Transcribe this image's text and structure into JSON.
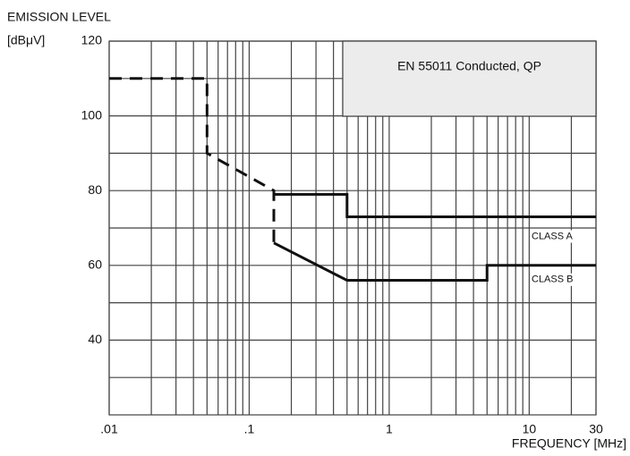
{
  "chart_data": {
    "type": "line",
    "title": "EMISSION LEVEL",
    "y_label": "[dBμV]",
    "x_label": "FREQUENCY [MHz]",
    "annotation": "EN 55011 Conducted, QP",
    "x_log": true,
    "xlim": [
      0.01,
      30
    ],
    "ylim": [
      20,
      120
    ],
    "xticks": [
      {
        "value": 0.01,
        "label": ".01"
      },
      {
        "value": 0.1,
        "label": ".1"
      },
      1,
      10,
      30
    ],
    "x_minor_ticks": [
      0.02,
      0.03,
      0.04,
      0.05,
      0.06,
      0.07,
      0.08,
      0.09,
      0.2,
      0.3,
      0.4,
      0.5,
      0.6,
      0.7,
      0.8,
      0.9,
      2,
      3,
      4,
      5,
      6,
      7,
      8,
      9,
      20
    ],
    "yticks": [
      40,
      60,
      80,
      100,
      120
    ],
    "y_minor_ticks": [
      30,
      50,
      70,
      90,
      110
    ],
    "grid": true,
    "series": [
      {
        "color": "#111111",
        "dashed": true,
        "x": [
          0.01,
          0.05,
          0.05,
          0.15,
          0.15
        ],
        "values": [
          110,
          110,
          90,
          80,
          66
        ]
      },
      {
        "name": "CLASS A",
        "color": "#111111",
        "x": [
          0.15,
          0.5,
          0.5,
          30
        ],
        "values": [
          79,
          79,
          73,
          73
        ]
      },
      {
        "name": "CLASS B",
        "color": "#111111",
        "x": [
          0.15,
          0.5,
          5,
          5,
          30
        ],
        "values": [
          66,
          56,
          56,
          60,
          60
        ]
      }
    ]
  }
}
